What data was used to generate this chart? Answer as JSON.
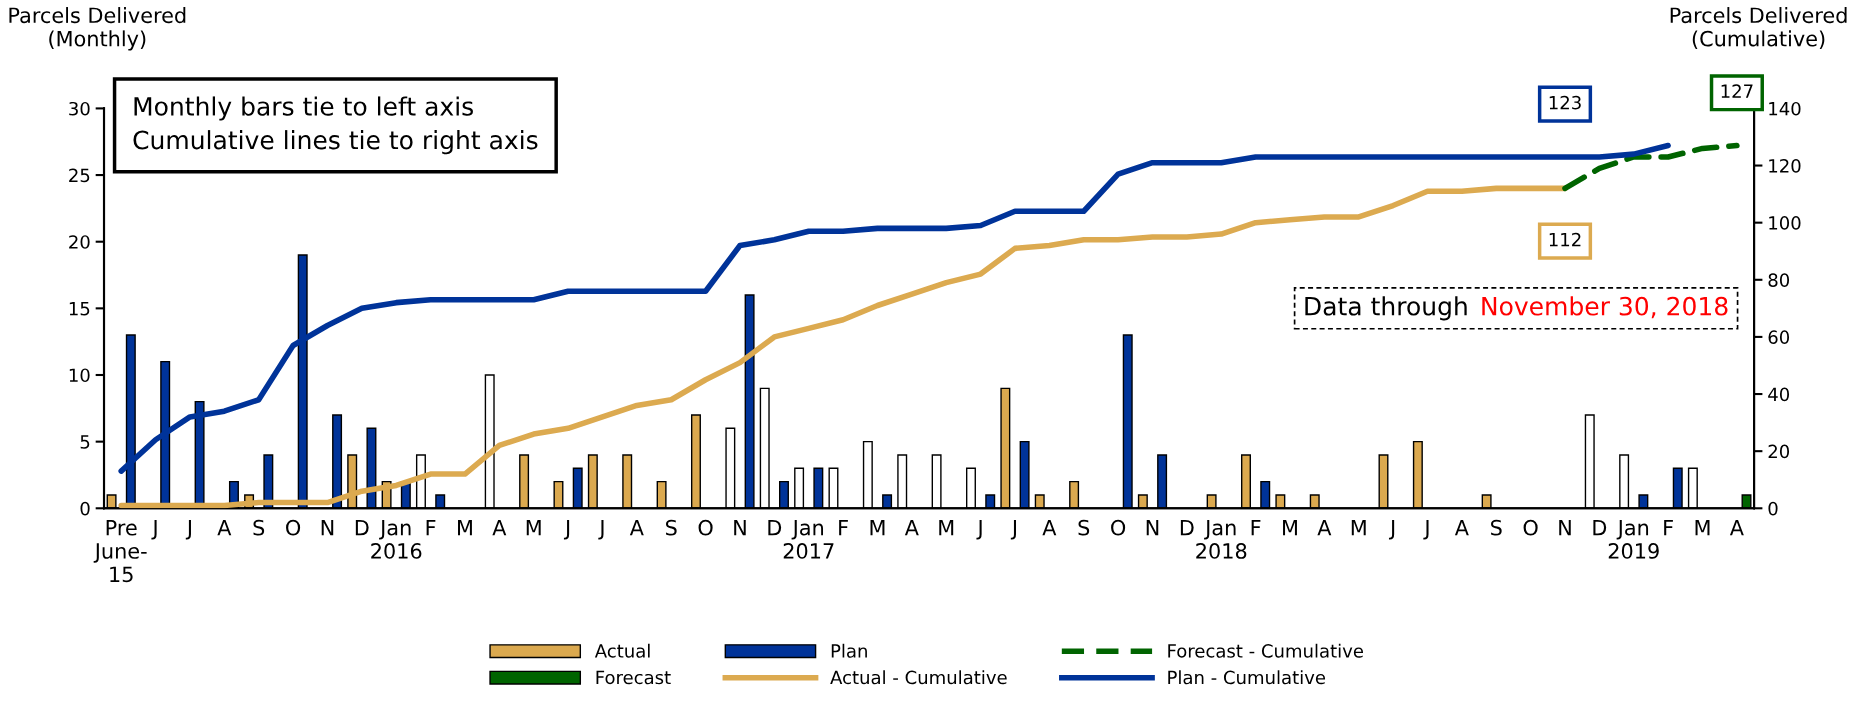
{
  "chart_data": {
    "type": "bar",
    "ylabel": "Parcels Delivered\n(Monthly)",
    "y2label": "Parcels Delivered\n(Cumulative)",
    "categories": [
      "Pre\nJune-\n15",
      "J",
      "J",
      "A",
      "S",
      "O",
      "N",
      "D",
      "Jan\n2016",
      "F",
      "M",
      "A",
      "M",
      "J",
      "J",
      "A",
      "S",
      "O",
      "N",
      "D",
      "Jan\n2017",
      "F",
      "M",
      "A",
      "M",
      "J",
      "J",
      "A",
      "S",
      "O",
      "N",
      "D",
      "Jan\n2018",
      "F",
      "M",
      "A",
      "M",
      "J",
      "J",
      "A",
      "S",
      "O",
      "N",
      "D",
      "Jan\n2019",
      "F",
      "M",
      "A"
    ],
    "ylim": [
      0,
      30
    ],
    "yticks": [
      0,
      5,
      10,
      15,
      20,
      25,
      30
    ],
    "y2lim": [
      0,
      140
    ],
    "y2ticks": [
      0,
      20,
      40,
      60,
      80,
      100,
      120,
      140
    ],
    "series": [
      {
        "name": "Actual",
        "color": "#dba94f",
        "values": [
          1,
          null,
          null,
          null,
          1,
          null,
          null,
          4,
          2,
          null,
          null,
          null,
          4,
          2,
          4,
          4,
          2,
          7,
          null,
          null,
          null,
          null,
          null,
          null,
          null,
          null,
          9,
          1,
          2,
          null,
          1,
          null,
          1,
          4,
          1,
          1,
          null,
          4,
          5,
          null,
          1,
          null,
          null,
          null,
          null,
          null,
          null,
          null
        ]
      },
      {
        "name": "Forecast",
        "color": "#006400",
        "values": [
          null,
          null,
          null,
          null,
          null,
          null,
          null,
          null,
          null,
          null,
          null,
          null,
          null,
          null,
          null,
          null,
          null,
          null,
          null,
          null,
          null,
          null,
          null,
          null,
          null,
          null,
          null,
          null,
          null,
          null,
          null,
          null,
          null,
          null,
          null,
          null,
          null,
          null,
          null,
          null,
          null,
          null,
          null,
          null,
          null,
          null,
          null,
          1
        ]
      },
      {
        "name": "Plan",
        "color": "#003399",
        "values": [
          13,
          11,
          8,
          2,
          4,
          19,
          7,
          6,
          2,
          1,
          null,
          null,
          null,
          3,
          null,
          null,
          null,
          null,
          16,
          2,
          3,
          null,
          1,
          null,
          null,
          1,
          5,
          null,
          null,
          13,
          4,
          null,
          null,
          2,
          null,
          null,
          null,
          null,
          null,
          null,
          null,
          null,
          null,
          null,
          1,
          3,
          null,
          null
        ]
      },
      {
        "name": "Actual - Cumulative",
        "type": "line",
        "axis": "y2",
        "color": "#dcaa50",
        "values": [
          1,
          1,
          1,
          1,
          2,
          2,
          2,
          6,
          8,
          12,
          12,
          22,
          26,
          28,
          32,
          36,
          38,
          45,
          51,
          60,
          63,
          66,
          71,
          75,
          79,
          82,
          91,
          92,
          94,
          94,
          95,
          95,
          96,
          100,
          101,
          102,
          102,
          106,
          111,
          111,
          112,
          112,
          112,
          null,
          null,
          null,
          null,
          null
        ],
        "value_labels": [
          null,
          null,
          null,
          null,
          null,
          null,
          null,
          null,
          null,
          null,
          null,
          null,
          null,
          null,
          null,
          null,
          null,
          null,
          null,
          null,
          null,
          null,
          null,
          null,
          null,
          null,
          null,
          null,
          null,
          null,
          null,
          null,
          null,
          null,
          null,
          null,
          null,
          null,
          null,
          null,
          null,
          null,
          "112",
          null,
          null,
          null,
          null,
          null
        ]
      },
      {
        "name": "Forecast - Cumulative",
        "type": "line",
        "axis": "y2",
        "line_style": "dashed",
        "color": "#006400",
        "values": [
          null,
          null,
          null,
          null,
          null,
          null,
          null,
          null,
          null,
          null,
          null,
          null,
          null,
          null,
          null,
          null,
          null,
          null,
          null,
          null,
          null,
          null,
          null,
          null,
          null,
          null,
          null,
          null,
          null,
          null,
          null,
          null,
          null,
          null,
          null,
          null,
          null,
          null,
          null,
          null,
          null,
          null,
          112,
          119,
          123,
          123,
          126,
          127
        ],
        "value_labels": [
          null,
          null,
          null,
          null,
          null,
          null,
          null,
          null,
          null,
          null,
          null,
          null,
          null,
          null,
          null,
          null,
          null,
          null,
          null,
          null,
          null,
          null,
          null,
          null,
          null,
          null,
          null,
          null,
          null,
          null,
          null,
          null,
          null,
          null,
          null,
          null,
          null,
          null,
          null,
          null,
          null,
          null,
          null,
          null,
          null,
          null,
          null,
          "127"
        ]
      },
      {
        "name": "Plan - Cumulative",
        "type": "line",
        "axis": "y2",
        "color": "#003399",
        "values": [
          13,
          24,
          32,
          34,
          38,
          57,
          64,
          70,
          72,
          73,
          73,
          73,
          73,
          76,
          76,
          76,
          76,
          76,
          92,
          94,
          97,
          97,
          98,
          98,
          98,
          99,
          104,
          104,
          104,
          117,
          121,
          121,
          121,
          123,
          123,
          123,
          123,
          123,
          123,
          123,
          123,
          123,
          123,
          123,
          124,
          127,
          null,
          null
        ],
        "value_labels": [
          null,
          null,
          null,
          null,
          null,
          null,
          null,
          null,
          null,
          null,
          null,
          null,
          null,
          null,
          null,
          null,
          null,
          null,
          null,
          null,
          null,
          null,
          null,
          null,
          null,
          null,
          null,
          null,
          null,
          null,
          null,
          null,
          null,
          null,
          null,
          null,
          null,
          null,
          null,
          null,
          null,
          null,
          "123",
          null,
          null,
          null,
          null,
          null
        ]
      },
      {
        "color": "#ffffff",
        "values": [
          null,
          null,
          null,
          null,
          null,
          null,
          null,
          null,
          null,
          4,
          null,
          10,
          null,
          null,
          null,
          null,
          null,
          null,
          6,
          9,
          3,
          3,
          5,
          4,
          4,
          3,
          null,
          null,
          null,
          null,
          null,
          null,
          null,
          null,
          null,
          null,
          null,
          null,
          null,
          null,
          null,
          null,
          null,
          7,
          4,
          null,
          3,
          null
        ]
      }
    ],
    "legend": "bottom",
    "annotations": [
      "Monthly bars tie to left axis\nCumulative lines tie to right axis",
      "Data through",
      "November 30, 2018"
    ]
  }
}
